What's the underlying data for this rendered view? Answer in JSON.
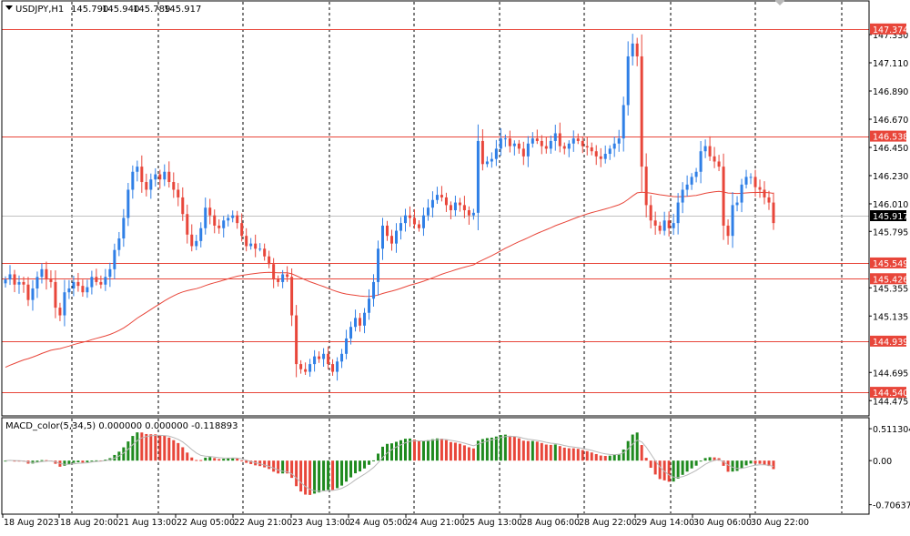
{
  "chart_data": [
    {
      "type": "candlestick",
      "symbol_info": {
        "label": "USDJPY,H1",
        "open": "145.790",
        "high": "145.940",
        "low": "145.789",
        "close": "145.917"
      },
      "ylim": [
        144.42,
        147.55
      ],
      "y_ticks": [
        "147.330",
        "147.110",
        "146.890",
        "146.670",
        "146.450",
        "146.230",
        "146.010",
        "145.795",
        "145.355",
        "145.135",
        "144.695",
        "144.475"
      ],
      "current_price": "145.917",
      "horizontal_levels": [
        "147.374",
        "146.538",
        "145.549",
        "145.426",
        "144.939",
        "144.540"
      ],
      "x_labels": [
        "18 Aug 2023",
        "18 Aug 20:00",
        "21 Aug 13:00",
        "22 Aug 05:00",
        "22 Aug 21:00",
        "23 Aug 13:00",
        "24 Aug 05:00",
        "24 Aug 21:00",
        "25 Aug 13:00",
        "28 Aug 06:00",
        "28 Aug 22:00",
        "29 Aug 14:00",
        "30 Aug 06:00",
        "30 Aug 22:00"
      ],
      "closes": [
        145.42,
        145.46,
        145.38,
        145.4,
        145.38,
        145.26,
        145.35,
        145.44,
        145.5,
        145.42,
        145.4,
        145.2,
        145.14,
        145.32,
        145.35,
        145.4,
        145.37,
        145.32,
        145.36,
        145.44,
        145.4,
        145.38,
        145.44,
        145.5,
        145.65,
        145.74,
        145.9,
        146.12,
        146.26,
        146.3,
        146.18,
        146.12,
        146.2,
        146.24,
        146.2,
        146.26,
        146.18,
        146.12,
        146.06,
        145.93,
        145.77,
        145.68,
        145.72,
        145.82,
        145.98,
        145.92,
        145.84,
        145.82,
        145.88,
        145.9,
        145.92,
        145.86,
        145.76,
        145.68,
        145.7,
        145.66,
        145.66,
        145.6,
        145.54,
        145.42,
        145.4,
        145.46,
        145.44,
        145.14,
        144.76,
        144.72,
        144.7,
        144.76,
        144.82,
        144.8,
        144.84,
        144.76,
        144.7,
        144.78,
        144.84,
        144.96,
        145.05,
        145.12,
        145.06,
        145.16,
        145.27,
        145.4,
        145.66,
        145.84,
        145.76,
        145.7,
        145.8,
        145.86,
        145.92,
        145.9,
        145.85,
        145.82,
        145.92,
        145.98,
        146.04,
        146.08,
        146.06,
        146.0,
        145.96,
        146.02,
        146.0,
        145.96,
        145.92,
        145.94,
        146.5,
        146.32,
        146.34,
        146.36,
        146.44,
        146.52,
        146.52,
        146.46,
        146.48,
        146.44,
        146.38,
        146.48,
        146.52,
        146.5,
        146.46,
        146.44,
        146.5,
        146.56,
        146.46,
        146.44,
        146.48,
        146.52,
        146.5,
        146.46,
        146.45,
        146.42,
        146.38,
        146.36,
        146.4,
        146.44,
        146.48,
        146.52,
        146.78,
        147.16,
        147.26,
        147.16,
        146.3,
        146.0,
        145.88,
        145.84,
        145.8,
        145.88,
        145.82,
        145.86,
        146.02,
        146.12,
        146.16,
        146.22,
        146.26,
        146.42,
        146.46,
        146.38,
        146.34,
        146.3,
        145.84,
        145.76,
        146.0,
        146.02,
        146.16,
        146.22,
        146.22,
        146.14,
        146.12,
        146.06,
        146.02,
        145.86
      ]
    },
    {
      "type": "bar",
      "name": "MACD_color",
      "label": "MACD_color(5,34,5) 0.000000 0.000000 -0.118893",
      "ylim": [
        -0.77,
        0.6
      ],
      "y_ticks": [
        "0.511304",
        "0.00",
        "-0.706375"
      ]
    }
  ]
}
